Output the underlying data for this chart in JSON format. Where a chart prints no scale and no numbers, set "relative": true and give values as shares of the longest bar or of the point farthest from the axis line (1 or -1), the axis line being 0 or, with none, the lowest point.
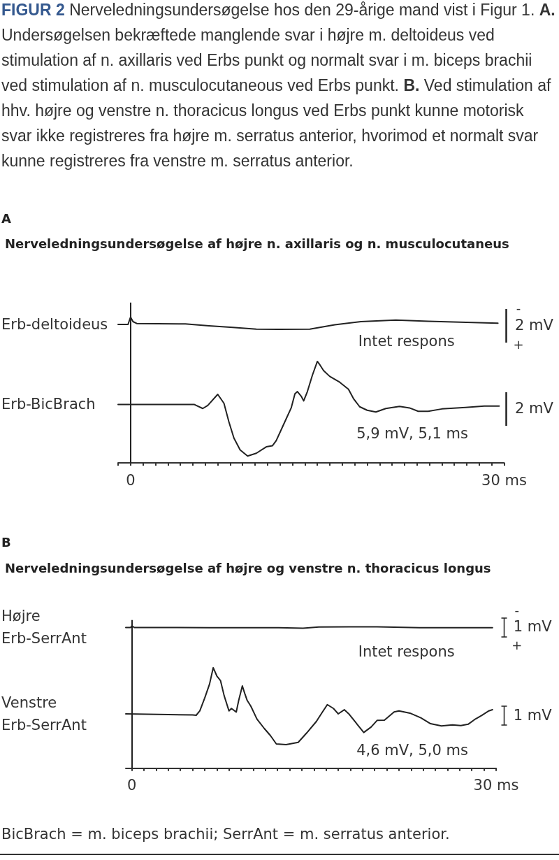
{
  "chart_data": [
    {
      "type": "line",
      "title": "Nerveledningsundersøgelse af højre n. axillaris og n. musculocutaneus",
      "relative": true,
      "xlim": [
        -1,
        30
      ],
      "xticks": [
        {
          "value": -1,
          "label": null
        },
        0,
        {
          "value": 1,
          "label": null
        },
        {
          "value": 2,
          "label": null
        },
        {
          "value": 3,
          "label": null
        },
        {
          "value": 4,
          "label": null
        },
        {
          "value": 5,
          "label": null
        },
        {
          "value": 6,
          "label": null
        },
        {
          "value": 7,
          "label": null
        },
        {
          "value": 8,
          "label": null
        },
        {
          "value": 9,
          "label": null
        },
        {
          "value": 10,
          "label": null
        },
        {
          "value": 11,
          "label": null
        },
        {
          "value": 12,
          "label": null
        },
        {
          "value": 13,
          "label": null
        },
        {
          "value": 14,
          "label": null
        },
        {
          "value": 15,
          "label": null
        },
        {
          "value": 16,
          "label": null
        },
        {
          "value": 17,
          "label": null
        },
        {
          "value": 18,
          "label": null
        },
        {
          "value": 19,
          "label": null
        },
        {
          "value": 20,
          "label": null
        },
        {
          "value": 21,
          "label": null
        },
        {
          "value": 22,
          "label": null
        },
        {
          "value": 23,
          "label": null
        },
        {
          "value": 24,
          "label": null
        },
        {
          "value": 25,
          "label": null
        },
        {
          "value": 26,
          "label": null
        },
        {
          "value": 27,
          "label": null
        },
        {
          "value": 28,
          "label": null
        },
        {
          "value": 29,
          "label": null
        },
        {
          "value": 30,
          "label": "30 ms"
        }
      ],
      "ref_lines": [
        {
          "axis": "x",
          "value": 0
        }
      ],
      "series": [
        {
          "name": "Erb-deltoideus",
          "color": "#222222",
          "x": [
            -1.0,
            -0.2,
            0.0,
            0.2,
            0.5,
            4.4,
            6.3,
            8.2,
            10.1,
            11.9,
            14.4,
            16.4,
            18.5,
            21.3,
            23.9,
            29.5
          ],
          "values": [
            0.95,
            0.95,
            1.0,
            0.969,
            0.956,
            0.953,
            0.94,
            0.93,
            0.917,
            0.916,
            0.917,
            0.947,
            0.969,
            0.98,
            0.972,
            0.958
          ]
        },
        {
          "name": "Erb-BicBrach",
          "color": "#222222",
          "x": [
            -1.0,
            5.1,
            5.8,
            6.2,
            7.0,
            7.5,
            7.9,
            8.3,
            8.8,
            9.4,
            10.1,
            10.9,
            11.4,
            11.7,
            12.3,
            12.9,
            13.2,
            13.4,
            13.7,
            13.9,
            14.2,
            14.6,
            15.0,
            15.2,
            15.5,
            16.0,
            16.8,
            17.5,
            17.9,
            18.4,
            19.0,
            19.7,
            20.5,
            21.6,
            22.4,
            23.1,
            23.9,
            25.0,
            26.9,
            28.4,
            29.6
          ],
          "values": [
            0.401,
            0.401,
            0.373,
            0.394,
            0.47,
            0.409,
            0.281,
            0.17,
            0.089,
            0.047,
            0.066,
            0.11,
            0.118,
            0.153,
            0.265,
            0.377,
            0.474,
            0.489,
            0.458,
            0.425,
            0.489,
            0.601,
            0.696,
            0.673,
            0.633,
            0.593,
            0.553,
            0.505,
            0.441,
            0.385,
            0.361,
            0.349,
            0.373,
            0.387,
            0.377,
            0.354,
            0.354,
            0.37,
            0.38,
            0.39,
            0.39
          ]
        }
      ],
      "annotations": [
        "FIGUR 2 Nerveledningsundersøgelse hos den 29-årige mand vist i Figur 1. A. Undersøgelsen bekræftede manglende svar i højre m. deltoideus ved stimulation af n. axillaris ved Erbs punkt og normalt svar i m. biceps brachii ved stimulation af n. musculocutaneous ved Erbs punkt. B. Ved stimulation af hhv. højre og venstre n. thoracicus longus ved Erbs punkt kunne motorisk svar ikke registreres fra højre m. serratus anterior, hvorimod et normalt svar kunne registreres fra venstre m. serratus anterior.",
        "A",
        "Intet respons",
        "5,9 mV, 5,1 ms",
        "-",
        "2 mV",
        "+",
        "2 mV"
      ]
    },
    {
      "type": "line",
      "title": "Nerveledningsundersøgelse af højre og venstre n. thoracicus longus",
      "relative": true,
      "xlim": [
        -0.5,
        30
      ],
      "xticks": [
        0,
        {
          "value": 1,
          "label": null
        },
        {
          "value": 2,
          "label": null
        },
        {
          "value": 3,
          "label": null
        },
        {
          "value": 4,
          "label": null
        },
        {
          "value": 5,
          "label": null
        },
        {
          "value": 6,
          "label": null
        },
        {
          "value": 7,
          "label": null
        },
        {
          "value": 8,
          "label": null
        },
        {
          "value": 9,
          "label": null
        },
        {
          "value": 10,
          "label": null
        },
        {
          "value": 11,
          "label": null
        },
        {
          "value": 12,
          "label": null
        },
        {
          "value": 13,
          "label": null
        },
        {
          "value": 14,
          "label": null
        },
        {
          "value": 15,
          "label": null
        },
        {
          "value": 16,
          "label": null
        },
        {
          "value": 17,
          "label": null
        },
        {
          "value": 18,
          "label": null
        },
        {
          "value": 19,
          "label": null
        },
        {
          "value": 20,
          "label": null
        },
        {
          "value": 21,
          "label": null
        },
        {
          "value": 22,
          "label": null
        },
        {
          "value": 23,
          "label": null
        },
        {
          "value": 24,
          "label": null
        },
        {
          "value": 25,
          "label": null
        },
        {
          "value": 26,
          "label": null
        },
        {
          "value": 27,
          "label": null
        },
        {
          "value": 28,
          "label": null
        },
        {
          "value": 29,
          "label": null
        },
        {
          "value": 30,
          "label": "30 ms"
        }
      ],
      "ref_lines": [
        {
          "axis": "x",
          "value": 0
        }
      ],
      "series": [
        {
          "name": "Højre Erb-SerrAnt",
          "color": "#222222",
          "x": [
            -0.5,
            -0.1,
            0.0,
            0.2,
            6.4,
            12.1,
            14.1,
            15.4,
            17.9,
            20.2,
            23.7,
            29.7
          ],
          "values": [
            0.988,
            0.988,
            1.0,
            0.988,
            0.987,
            0.987,
            0.983,
            0.992,
            0.993,
            0.993,
            0.987,
            0.987
          ]
        },
        {
          "name": "Venstre Erb-SerrAnt",
          "color": "#222222",
          "x": [
            -0.5,
            5.0,
            5.3,
            5.6,
            6.0,
            6.4,
            6.7,
            7.0,
            7.3,
            7.6,
            8.0,
            8.2,
            8.6,
            8.8,
            9.1,
            9.3,
            9.5,
            9.8,
            10.3,
            10.9,
            11.4,
            11.9,
            12.7,
            13.7,
            14.4,
            15.2,
            15.7,
            16.1,
            16.6,
            17.0,
            17.5,
            17.9,
            18.6,
            19.1,
            19.7,
            20.2,
            20.8,
            21.6,
            22.0,
            22.9,
            23.8,
            24.6,
            25.5,
            26.4,
            27.1,
            27.7,
            28.3,
            28.8,
            29.4,
            29.7
          ],
          "values": [
            0.382,
            0.374,
            0.372,
            0.403,
            0.493,
            0.591,
            0.706,
            0.648,
            0.616,
            0.51,
            0.403,
            0.42,
            0.395,
            0.476,
            0.578,
            0.525,
            0.476,
            0.436,
            0.346,
            0.28,
            0.231,
            0.171,
            0.166,
            0.182,
            0.248,
            0.329,
            0.395,
            0.447,
            0.42,
            0.382,
            0.411,
            0.379,
            0.304,
            0.251,
            0.289,
            0.336,
            0.338,
            0.395,
            0.403,
            0.387,
            0.354,
            0.313,
            0.297,
            0.304,
            0.3,
            0.309,
            0.346,
            0.37,
            0.403,
            0.411
          ]
        }
      ],
      "annotations": [
        "B",
        "Intet respons",
        "4,6 mV, 5,0 ms",
        "-",
        "1 mV",
        "+",
        "1 mV",
        "BicBrach = m. biceps brachii; SerrAnt = m. serratus anterior."
      ]
    }
  ]
}
